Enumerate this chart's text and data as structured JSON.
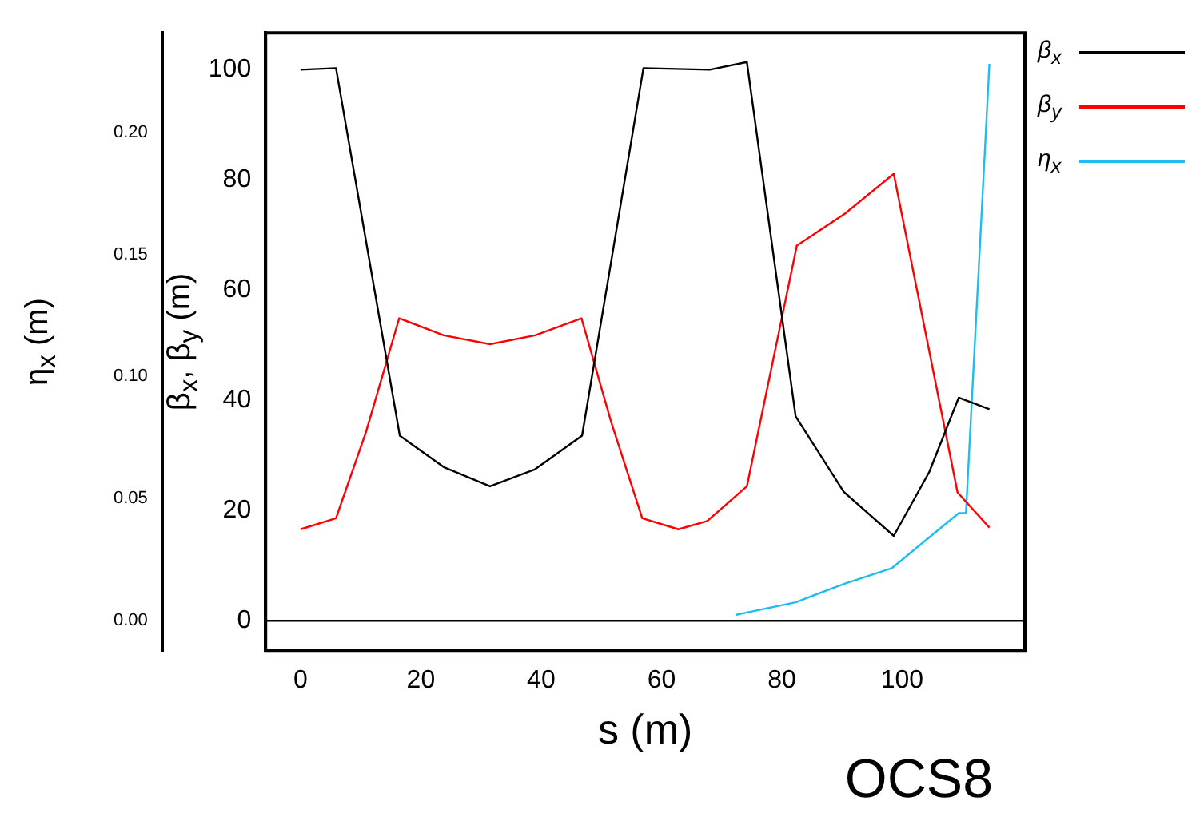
{
  "chart_data": {
    "type": "line",
    "xlabel": "s (m)",
    "ylabel": "β$_{x}$, β$_{y}$ (m)",
    "y2label": "η$_{x}$ (m)",
    "annotations": [
      "OCS8"
    ],
    "xlim": [
      -5.8,
      120.4
    ],
    "xticks": [
      0,
      20,
      40,
      60,
      80,
      100
    ],
    "ylim": [
      -5.5,
      106.7
    ],
    "yticks": [
      0,
      20,
      40,
      60,
      80,
      100
    ],
    "y2lim": [
      -0.0125,
      0.2407
    ],
    "y2ticks": [
      {
        "value": 0,
        "label": "0.00"
      },
      {
        "value": 0.05,
        "label": "0.05"
      },
      {
        "value": 0.1,
        "label": "0.10"
      },
      {
        "value": 0.15,
        "label": "0.15"
      },
      {
        "value": 0.2,
        "label": "0.20"
      }
    ],
    "grid": false,
    "legend": "top right",
    "marker": "none",
    "line_style": "solid",
    "ref_lines": [
      {
        "axis": "y",
        "value": 0,
        "color": "#000000"
      }
    ],
    "series": [
      {
        "name": "β$_{x}$",
        "color": "#000000",
        "x": [
          0,
          5.9,
          16.5,
          23.8,
          31.5,
          39,
          46.8,
          57,
          68,
          74.2,
          82.3,
          90.3,
          98.6,
          104.5,
          109.4,
          114.5
        ],
        "values": [
          100,
          100.3,
          33.6,
          27.9,
          24.4,
          27.5,
          33.6,
          100.3,
          100,
          101.4,
          37.1,
          23.4,
          15.4,
          27,
          40.5,
          38.4
        ]
      },
      {
        "name": "β$_{y}$",
        "color": "#ff0000",
        "x": [
          0,
          5.9,
          10.9,
          16.4,
          23.8,
          31.5,
          39,
          46.7,
          51.6,
          56.8,
          62.8,
          67.6,
          74.2,
          82.5,
          90.5,
          98.6,
          109.2,
          114.5
        ],
        "values": [
          16.6,
          18.6,
          34.3,
          54.9,
          51.8,
          50.2,
          51.8,
          54.9,
          36.2,
          18.6,
          16.6,
          18.1,
          24.4,
          68.1,
          73.9,
          81.1,
          23.3,
          16.9
        ]
      },
      {
        "name": "η$_{x}$",
        "color": "#1ebcf0",
        "axis": "y2",
        "x": [
          72.3,
          74.2,
          82.3,
          90.5,
          98.3,
          109.4,
          110.6,
          114.5
        ],
        "values": [
          0.0023,
          0.0033,
          0.0075,
          0.0152,
          0.0215,
          0.044,
          0.044,
          0.228
        ]
      }
    ]
  }
}
